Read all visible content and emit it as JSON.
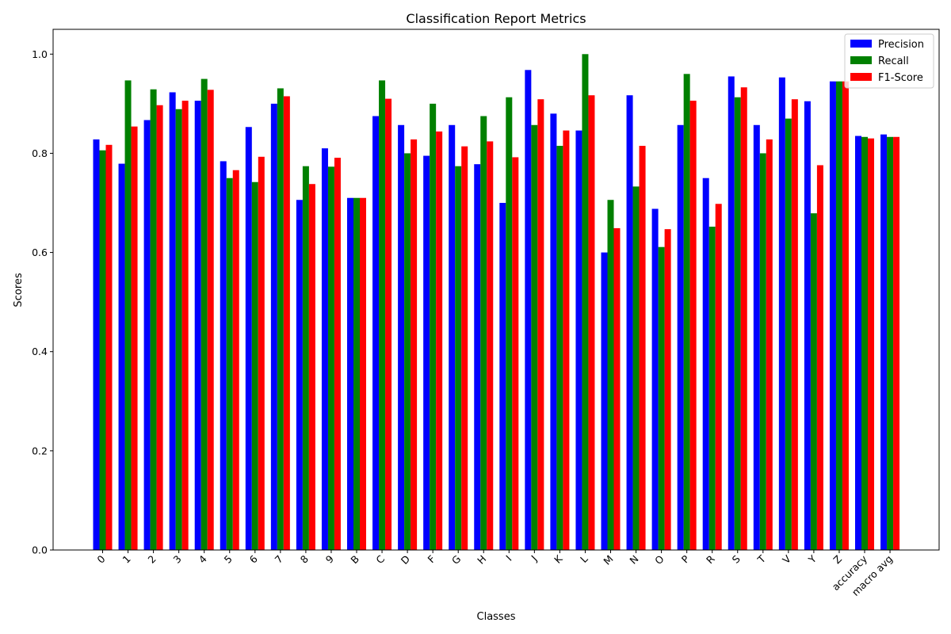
{
  "chart_data": {
    "type": "bar",
    "title": "Classification Report Metrics",
    "xlabel": "Classes",
    "ylabel": "Scores",
    "ylim": [
      0,
      1.05
    ],
    "yticks": [
      0.0,
      0.2,
      0.4,
      0.6,
      0.8,
      1.0
    ],
    "ytick_labels": [
      "0.0",
      "0.2",
      "0.4",
      "0.6",
      "0.8",
      "1.0"
    ],
    "legend_position": "top-right",
    "grid": false,
    "categories": [
      "0",
      "1",
      "2",
      "3",
      "4",
      "5",
      "6",
      "7",
      "8",
      "9",
      "B",
      "C",
      "D",
      "F",
      "G",
      "H",
      "I",
      "J",
      "K",
      "L",
      "M",
      "N",
      "O",
      "P",
      "R",
      "S",
      "T",
      "V",
      "Y",
      "Z",
      "accuracy",
      "macro avg"
    ],
    "series": [
      {
        "name": "Precision",
        "color": "#0000ff",
        "values": [
          0.828,
          0.779,
          0.867,
          0.923,
          0.906,
          0.784,
          0.853,
          0.9,
          0.706,
          0.81,
          0.71,
          0.875,
          0.857,
          0.795,
          0.857,
          0.778,
          0.7,
          0.968,
          0.88,
          0.846,
          0.6,
          0.917,
          0.688,
          0.857,
          0.75,
          0.955,
          0.857,
          0.953,
          0.905,
          0.945,
          0.835,
          0.838
        ]
      },
      {
        "name": "Recall",
        "color": "#008000",
        "values": [
          0.806,
          0.947,
          0.929,
          0.889,
          0.95,
          0.75,
          0.742,
          0.931,
          0.774,
          0.773,
          0.71,
          0.947,
          0.8,
          0.9,
          0.774,
          0.875,
          0.913,
          0.857,
          0.815,
          1.0,
          0.706,
          0.733,
          0.611,
          0.96,
          0.652,
          0.913,
          0.8,
          0.87,
          0.679,
          0.945,
          0.833,
          0.833
        ]
      },
      {
        "name": "F1-Score",
        "color": "#ff0000",
        "values": [
          0.817,
          0.854,
          0.897,
          0.906,
          0.928,
          0.766,
          0.793,
          0.915,
          0.738,
          0.791,
          0.71,
          0.91,
          0.828,
          0.844,
          0.814,
          0.824,
          0.792,
          0.909,
          0.846,
          0.917,
          0.649,
          0.815,
          0.647,
          0.906,
          0.698,
          0.933,
          0.828,
          0.909,
          0.776,
          0.945,
          0.83,
          0.833
        ]
      }
    ]
  }
}
